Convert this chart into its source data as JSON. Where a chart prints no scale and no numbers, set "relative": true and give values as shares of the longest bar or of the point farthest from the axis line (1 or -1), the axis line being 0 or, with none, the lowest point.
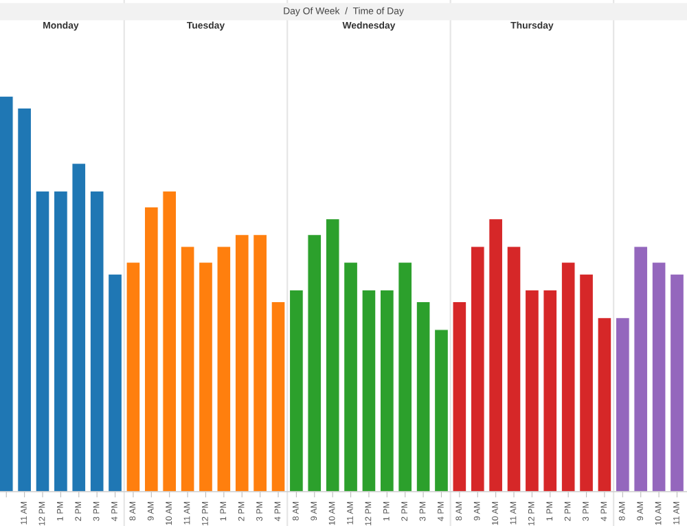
{
  "chart_data": {
    "type": "bar",
    "title": "Day Of Week  /  Time of Day",
    "relative": true,
    "legend": false,
    "grid": false,
    "annotations": [
      "Monday",
      "Tuesday",
      "Wednesday",
      "Thursday"
    ],
    "categories": [
      null,
      "11 AM",
      "12 PM",
      "1 PM",
      "2 PM",
      "3 PM",
      "4 PM",
      "8 AM",
      "9 AM",
      "10 AM",
      "11 AM",
      "12 PM",
      "1 PM",
      "2 PM",
      "3 PM",
      "4 PM",
      "8 AM",
      "9 AM",
      "10 AM",
      "11 AM",
      "12 PM",
      "1 PM",
      "2 PM",
      "3 PM",
      "4 PM",
      "8 AM",
      "9 AM",
      "10 AM",
      "11 AM",
      "12 PM",
      "1 PM",
      "2 PM",
      "3 PM",
      "4 PM",
      "8 AM",
      "9 AM",
      "10 AM",
      "11 AM"
    ],
    "values": [
      1.0,
      0.97,
      0.76,
      0.76,
      0.83,
      0.76,
      0.55,
      0.58,
      0.72,
      0.76,
      0.62,
      0.58,
      0.62,
      0.65,
      0.65,
      0.48,
      0.51,
      0.65,
      0.69,
      0.58,
      0.51,
      0.51,
      0.58,
      0.48,
      0.41,
      0.48,
      0.62,
      0.69,
      0.62,
      0.51,
      0.51,
      0.58,
      0.55,
      0.44,
      0.44,
      0.62,
      0.58,
      0.55
    ],
    "colors": [
      "#1f77b4",
      "#1f77b4",
      "#1f77b4",
      "#1f77b4",
      "#1f77b4",
      "#1f77b4",
      "#1f77b4",
      "#ff7f0e",
      "#ff7f0e",
      "#ff7f0e",
      "#ff7f0e",
      "#ff7f0e",
      "#ff7f0e",
      "#ff7f0e",
      "#ff7f0e",
      "#ff7f0e",
      "#2ca02c",
      "#2ca02c",
      "#2ca02c",
      "#2ca02c",
      "#2ca02c",
      "#2ca02c",
      "#2ca02c",
      "#2ca02c",
      "#2ca02c",
      "#d62728",
      "#d62728",
      "#d62728",
      "#d62728",
      "#d62728",
      "#d62728",
      "#d62728",
      "#d62728",
      "#d62728",
      "#9467bd",
      "#9467bd",
      "#9467bd",
      "#9467bd"
    ]
  }
}
